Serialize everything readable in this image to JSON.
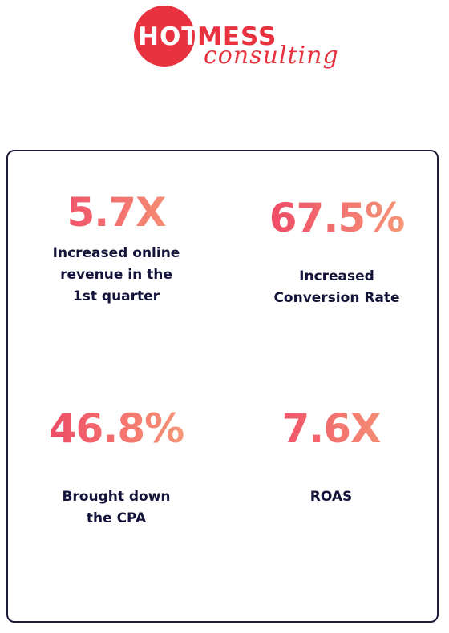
{
  "logo": {
    "hot": "HOT",
    "mess": "MESS",
    "script": "consulting"
  },
  "stats": [
    {
      "value": "5.7X",
      "label": "Increased online revenue in the 1st quarter"
    },
    {
      "value": "67.5%",
      "label": "Increased Conversion Rate"
    },
    {
      "value": "46.8%",
      "label": "Brought down the CPA"
    },
    {
      "value": "7.6X",
      "label": "ROAS"
    }
  ]
}
